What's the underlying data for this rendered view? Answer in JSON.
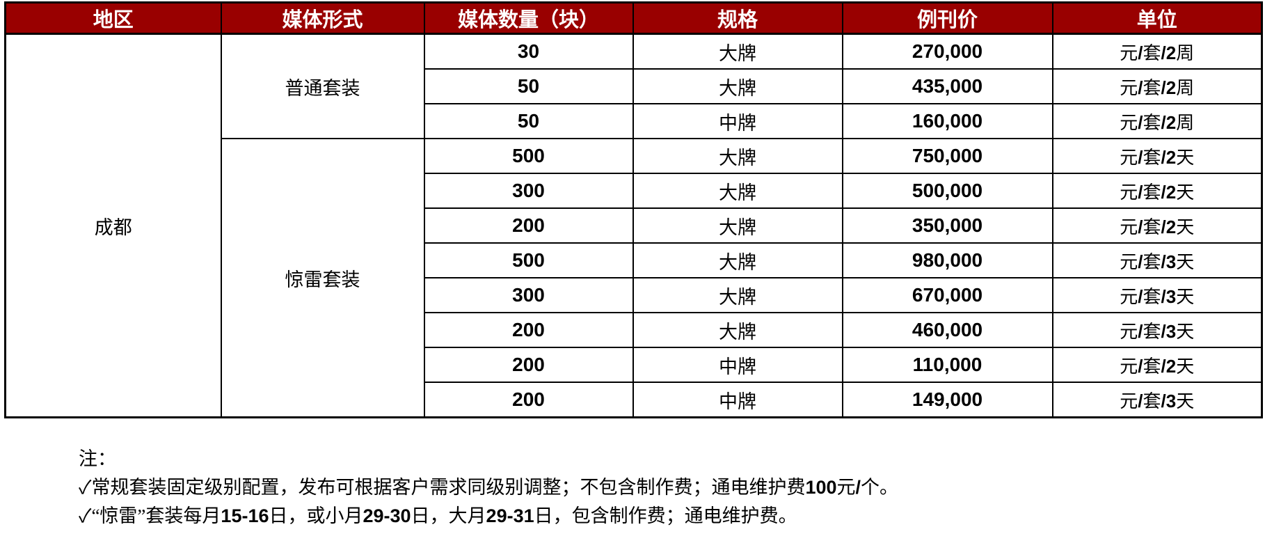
{
  "table": {
    "header_bg": "#990000",
    "header_fg": "#ffffff",
    "columns": [
      "地区",
      "媒体形式",
      "媒体数量（块）",
      "规格",
      "例刊价",
      "单位"
    ],
    "region": "成都",
    "groups": [
      {
        "name": "普通套装",
        "rows": [
          {
            "qty": "30",
            "spec": "大牌",
            "price": "270,000",
            "unit": "元/套/2周"
          },
          {
            "qty": "50",
            "spec": "大牌",
            "price": "435,000",
            "unit": "元/套/2周"
          },
          {
            "qty": "50",
            "spec": "中牌",
            "price": "160,000",
            "unit": "元/套/2周"
          }
        ]
      },
      {
        "name": "惊雷套装",
        "rows": [
          {
            "qty": "500",
            "spec": "大牌",
            "price": "750,000",
            "unit": "元/套/2天"
          },
          {
            "qty": "300",
            "spec": "大牌",
            "price": "500,000",
            "unit": "元/套/2天"
          },
          {
            "qty": "200",
            "spec": "大牌",
            "price": "350,000",
            "unit": "元/套/2天"
          },
          {
            "qty": "500",
            "spec": "大牌",
            "price": "980,000",
            "unit": "元/套/3天"
          },
          {
            "qty": "300",
            "spec": "大牌",
            "price": "670,000",
            "unit": "元/套/3天"
          },
          {
            "qty": "200",
            "spec": "大牌",
            "price": "460,000",
            "unit": "元/套/3天"
          },
          {
            "qty": "200",
            "spec": "中牌",
            "price": "110,000",
            "unit": "元/套/2天"
          },
          {
            "qty": "200",
            "spec": "中牌",
            "price": "149,000",
            "unit": "元/套/3天"
          }
        ]
      }
    ]
  },
  "notes": {
    "label": "注：",
    "items": [
      "✓常规套装固定级别配置，发布可根据客户需求同级别调整；不包含制作费；通电维护费100元/个。",
      "✓“惊雷”套装每月15-16日，或小月29-30日，大月29-31日，包含制作费；通电维护费。"
    ]
  }
}
